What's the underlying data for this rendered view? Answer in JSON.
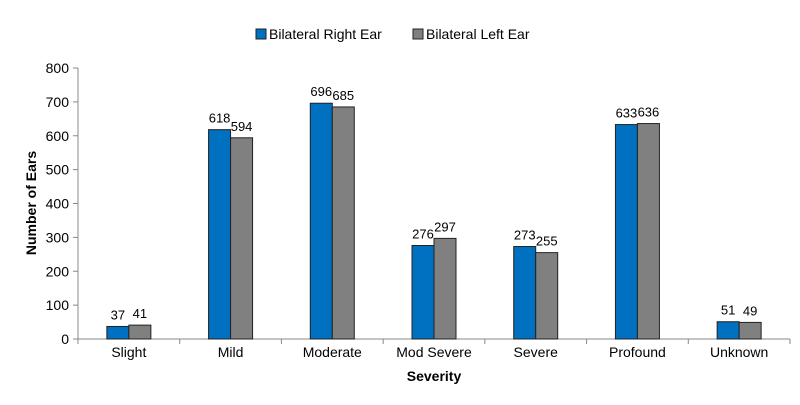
{
  "chart_data": {
    "type": "bar",
    "title": "",
    "xlabel": "Severity",
    "ylabel": "Number of Ears",
    "ylim": [
      0,
      800
    ],
    "yticks": [
      0,
      100,
      200,
      300,
      400,
      500,
      600,
      700,
      800
    ],
    "grid": false,
    "legend_position": "top",
    "categories": [
      "Slight",
      "Mild",
      "Moderate",
      "Mod Severe",
      "Severe",
      "Profound",
      "Unknown"
    ],
    "series": [
      {
        "name": "Bilateral Right Ear",
        "color": "#0070C0",
        "values": [
          37,
          618,
          696,
          276,
          273,
          633,
          51
        ]
      },
      {
        "name": "Bilateral Left Ear",
        "color": "#808080",
        "values": [
          41,
          594,
          685,
          297,
          255,
          636,
          49
        ]
      }
    ]
  }
}
